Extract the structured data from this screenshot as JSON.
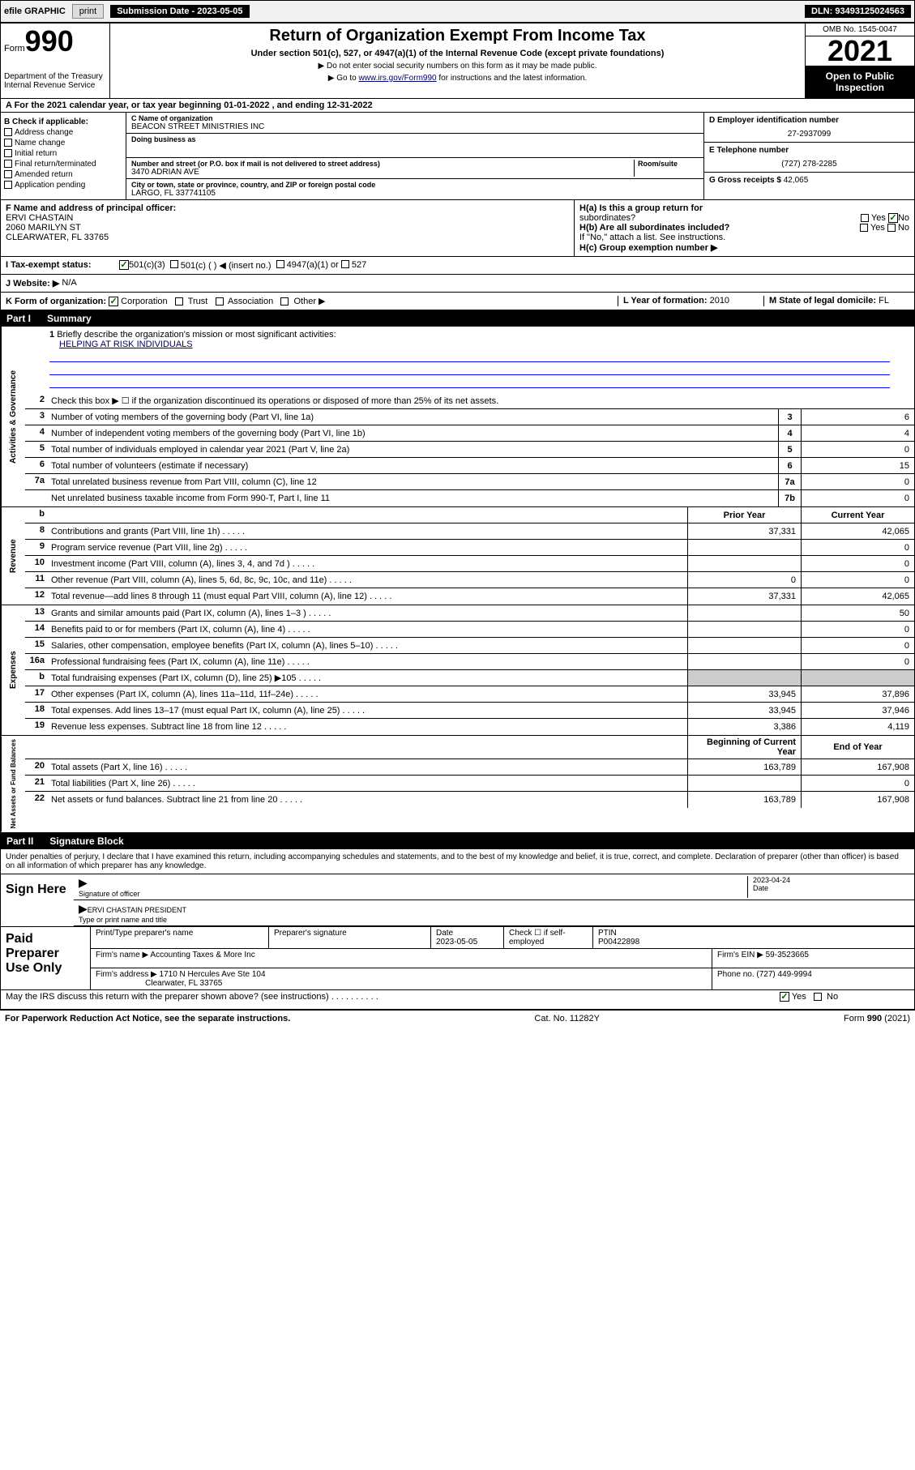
{
  "topbar": {
    "efile": "efile GRAPHIC",
    "print": "print",
    "sub_label": "Submission Date - 2023-05-05",
    "dln": "DLN: 93493125024563"
  },
  "header": {
    "form_word": "Form",
    "form_num": "990",
    "title": "Return of Organization Exempt From Income Tax",
    "subtitle": "Under section 501(c), 527, or 4947(a)(1) of the Internal Revenue Code (except private foundations)",
    "note1": "▶ Do not enter social security numbers on this form as it may be made public.",
    "note2_pre": "▶ Go to ",
    "note2_link": "www.irs.gov/Form990",
    "note2_post": " for instructions and the latest information.",
    "dept": "Department of the Treasury\nInternal Revenue Service",
    "omb": "OMB No. 1545-0047",
    "year": "2021",
    "otp": "Open to Public Inspection"
  },
  "lineA": "A For the 2021 calendar year, or tax year beginning 01-01-2022  , and ending 12-31-2022",
  "sectionB": {
    "label": "B Check if applicable:",
    "opts": [
      "Address change",
      "Name change",
      "Initial return",
      "Final return/terminated",
      "Amended return",
      "Application pending"
    ]
  },
  "sectionC": {
    "name_lbl": "C Name of organization",
    "name": "BEACON STREET MINISTRIES INC",
    "dba_lbl": "Doing business as",
    "dba": "",
    "addr_lbl": "Number and street (or P.O. box if mail is not delivered to street address)",
    "room_lbl": "Room/suite",
    "addr": "3470 ADRIAN AVE",
    "city_lbl": "City or town, state or province, country, and ZIP or foreign postal code",
    "city": "LARGO, FL  337741105"
  },
  "sectionD": {
    "lbl": "D Employer identification number",
    "val": "27-2937099"
  },
  "sectionE": {
    "lbl": "E Telephone number",
    "val": "(727) 278-2285"
  },
  "sectionG": {
    "lbl": "G Gross receipts $",
    "val": "42,065"
  },
  "sectionF": {
    "lbl": "F Name and address of principal officer:",
    "name": "ERVI CHASTAIN",
    "addr1": "2060 MARILYN ST",
    "addr2": "CLEARWATER, FL  33765"
  },
  "sectionH": {
    "a": "H(a)  Is this a group return for",
    "a2": "subordinates?",
    "b": "H(b)  Are all subordinates included?",
    "note": "If \"No,\" attach a list. See instructions.",
    "c": "H(c)  Group exemption number ▶",
    "yes": "Yes",
    "no": "No"
  },
  "sectionI": {
    "lbl": "I   Tax-exempt status:",
    "o1": "501(c)(3)",
    "o2": "501(c) (   ) ◀ (insert no.)",
    "o3": "4947(a)(1) or",
    "o4": "527"
  },
  "sectionJ": {
    "lbl": "J   Website: ▶",
    "val": "N/A"
  },
  "sectionK": {
    "lbl": "K Form of organization:",
    "o1": "Corporation",
    "o2": "Trust",
    "o3": "Association",
    "o4": "Other ▶"
  },
  "sectionL": {
    "lbl": "L Year of formation:",
    "val": "2010"
  },
  "sectionM": {
    "lbl": "M State of legal domicile:",
    "val": "FL"
  },
  "part1": {
    "num": "Part I",
    "title": "Summary"
  },
  "p1_1": {
    "n": "1",
    "desc": "Briefly describe the organization's mission or most significant activities:",
    "mission": "HELPING AT RISK INDIVIDUALS"
  },
  "p1_2": {
    "n": "2",
    "desc": "Check this box ▶ ☐  if the organization discontinued its operations or disposed of more than 25% of its net assets."
  },
  "gov_rows": [
    {
      "n": "3",
      "desc": "Number of voting members of the governing body (Part VI, line 1a)",
      "box": "3",
      "val": "6"
    },
    {
      "n": "4",
      "desc": "Number of independent voting members of the governing body (Part VI, line 1b)",
      "box": "4",
      "val": "4"
    },
    {
      "n": "5",
      "desc": "Total number of individuals employed in calendar year 2021 (Part V, line 2a)",
      "box": "5",
      "val": "0"
    },
    {
      "n": "6",
      "desc": "Total number of volunteers (estimate if necessary)",
      "box": "6",
      "val": "15"
    },
    {
      "n": "7a",
      "desc": "Total unrelated business revenue from Part VIII, column (C), line 12",
      "box": "7a",
      "val": "0"
    },
    {
      "n": "",
      "desc": "Net unrelated business taxable income from Form 990-T, Part I, line 11",
      "box": "7b",
      "val": "0"
    }
  ],
  "two_col_hdr": {
    "prior": "Prior Year",
    "current": "Current Year",
    "boy": "Beginning of Current Year",
    "eoy": "End of Year"
  },
  "revenue_rows": [
    {
      "n": "8",
      "desc": "Contributions and grants (Part VIII, line 1h)",
      "prior": "37,331",
      "cur": "42,065"
    },
    {
      "n": "9",
      "desc": "Program service revenue (Part VIII, line 2g)",
      "prior": "",
      "cur": "0"
    },
    {
      "n": "10",
      "desc": "Investment income (Part VIII, column (A), lines 3, 4, and 7d )",
      "prior": "",
      "cur": "0"
    },
    {
      "n": "11",
      "desc": "Other revenue (Part VIII, column (A), lines 5, 6d, 8c, 9c, 10c, and 11e)",
      "prior": "0",
      "cur": "0"
    },
    {
      "n": "12",
      "desc": "Total revenue—add lines 8 through 11 (must equal Part VIII, column (A), line 12)",
      "prior": "37,331",
      "cur": "42,065"
    }
  ],
  "expense_rows": [
    {
      "n": "13",
      "desc": "Grants and similar amounts paid (Part IX, column (A), lines 1–3 )",
      "prior": "",
      "cur": "50"
    },
    {
      "n": "14",
      "desc": "Benefits paid to or for members (Part IX, column (A), line 4)",
      "prior": "",
      "cur": "0"
    },
    {
      "n": "15",
      "desc": "Salaries, other compensation, employee benefits (Part IX, column (A), lines 5–10)",
      "prior": "",
      "cur": "0"
    },
    {
      "n": "16a",
      "desc": "Professional fundraising fees (Part IX, column (A), line 11e)",
      "prior": "",
      "cur": "0"
    },
    {
      "n": "b",
      "desc": "Total fundraising expenses (Part IX, column (D), line 25) ▶105",
      "prior": "GRAY",
      "cur": "GRAY"
    },
    {
      "n": "17",
      "desc": "Other expenses (Part IX, column (A), lines 11a–11d, 11f–24e)",
      "prior": "33,945",
      "cur": "37,896"
    },
    {
      "n": "18",
      "desc": "Total expenses. Add lines 13–17 (must equal Part IX, column (A), line 25)",
      "prior": "33,945",
      "cur": "37,946"
    },
    {
      "n": "19",
      "desc": "Revenue less expenses. Subtract line 18 from line 12",
      "prior": "3,386",
      "cur": "4,119"
    }
  ],
  "netassets_rows": [
    {
      "n": "20",
      "desc": "Total assets (Part X, line 16)",
      "prior": "163,789",
      "cur": "167,908"
    },
    {
      "n": "21",
      "desc": "Total liabilities (Part X, line 26)",
      "prior": "",
      "cur": "0"
    },
    {
      "n": "22",
      "desc": "Net assets or fund balances. Subtract line 21 from line 20",
      "prior": "163,789",
      "cur": "167,908"
    }
  ],
  "side_labels": {
    "gov": "Activities & Governance",
    "rev": "Revenue",
    "exp": "Expenses",
    "net": "Net Assets or Fund Balances"
  },
  "part2": {
    "num": "Part II",
    "title": "Signature Block"
  },
  "sig": {
    "declare": "Under penalties of perjury, I declare that I have examined this return, including accompanying schedules and statements, and to the best of my knowledge and belief, it is true, correct, and complete. Declaration of preparer (other than officer) is based on all information of which preparer has any knowledge.",
    "sign_here": "Sign Here",
    "sig_officer": "Signature of officer",
    "date": "Date",
    "date_val": "2023-04-24",
    "name": "ERVI CHASTAIN  PRESIDENT",
    "name_lbl": "Type or print name and title"
  },
  "prep": {
    "lbl": "Paid Preparer Use Only",
    "h1": "Print/Type preparer's name",
    "h2": "Preparer's signature",
    "h3": "Date",
    "h3v": "2023-05-05",
    "h4": "Check ☐ if self-employed",
    "h5": "PTIN",
    "h5v": "P00422898",
    "firm_name_lbl": "Firm's name    ▶",
    "firm_name": "Accounting Taxes & More Inc",
    "firm_ein_lbl": "Firm's EIN ▶",
    "firm_ein": "59-3523665",
    "firm_addr_lbl": "Firm's address ▶",
    "firm_addr1": "1710 N Hercules Ave Ste 104",
    "firm_addr2": "Clearwater, FL  33765",
    "phone_lbl": "Phone no.",
    "phone": "(727) 449-9994",
    "discuss": "May the IRS discuss this return with the preparer shown above? (see instructions)",
    "yes": "Yes",
    "no": "No"
  },
  "footer": {
    "left": "For Paperwork Reduction Act Notice, see the separate instructions.",
    "mid": "Cat. No. 11282Y",
    "right": "Form 990 (2021)"
  }
}
